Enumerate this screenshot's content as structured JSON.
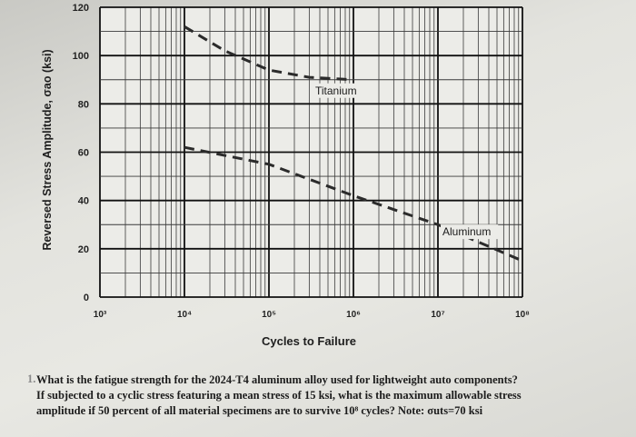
{
  "chart_data": {
    "type": "line",
    "xlabel": "Cycles to Failure",
    "ylabel": "Reversed Stress Amplitude, σao (ksi)",
    "xscale": "log",
    "xlim": [
      1000,
      100000000
    ],
    "ylim": [
      0,
      120
    ],
    "x_ticks": [
      "10³",
      "10⁴",
      "10⁵",
      "10⁶",
      "10⁷",
      "10⁸"
    ],
    "y_ticks": [
      "0",
      "20",
      "40",
      "60",
      "80",
      "100",
      "120"
    ],
    "y_tick_values": [
      0,
      20,
      40,
      60,
      80,
      100,
      120
    ],
    "grid": true,
    "series": [
      {
        "name": "Titanium",
        "line_style": "dashed",
        "x": [
          10000,
          30000,
          100000,
          300000,
          1000000
        ],
        "y": [
          112,
          102,
          94,
          91,
          90
        ]
      },
      {
        "name": "Aluminum",
        "line_style": "dashed",
        "x": [
          10000,
          100000,
          1000000,
          10000000,
          100000000
        ],
        "y": [
          62,
          55,
          42,
          30,
          15
        ]
      }
    ],
    "colors": {
      "series": "#2b2b2b",
      "grid_major": "#111111",
      "grid_minor": "#3a3a3a"
    }
  },
  "question": {
    "number": "1.",
    "lines": [
      "What is the fatigue strength for the 2024-T4 aluminum alloy used for lightweight auto components?",
      "If subjected to a cyclic stress featuring a mean stress of 15 ksi, what is the maximum allowable stress",
      "amplitude if 50 percent of all material specimens are to survive 10⁸ cycles? Note: σuts=70 ksi"
    ]
  }
}
